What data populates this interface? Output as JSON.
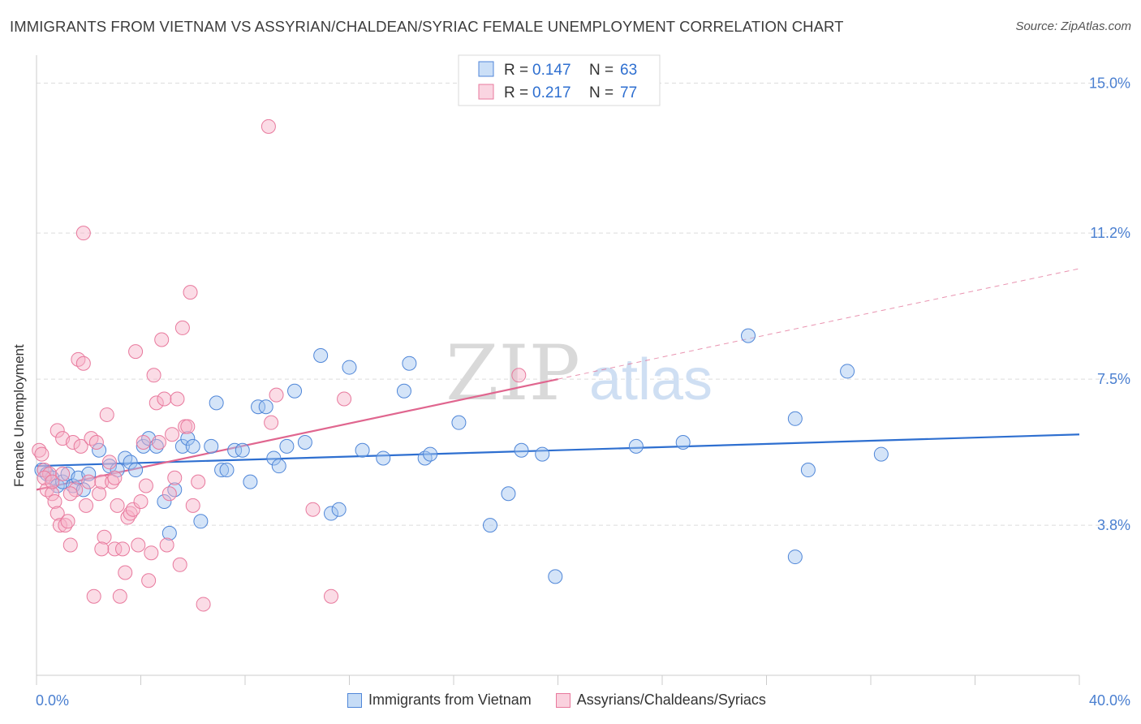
{
  "title": "IMMIGRANTS FROM VIETNAM VS ASSYRIAN/CHALDEAN/SYRIAC FEMALE UNEMPLOYMENT CORRELATION CHART",
  "source": "Source: ZipAtlas.com",
  "watermark": {
    "zip": "ZIP",
    "atlas": "atlas"
  },
  "colors": {
    "blue": "#4f86d8",
    "blue_fill": "rgba(160,196,240,0.45)",
    "blue_line": "#2e6fd0",
    "pink": "#e8799d",
    "pink_fill": "rgba(246,178,200,0.45)",
    "pink_line": "#e0668f",
    "grid": "#dcdcdc",
    "tick_label": "#4a7fd0"
  },
  "legend_top": {
    "rows": [
      {
        "r_label": "R = ",
        "r_value": "0.147",
        "n_label": "N = ",
        "n_value": "63"
      },
      {
        "r_label": "R = ",
        "r_value": "0.217",
        "n_label": "N = ",
        "n_value": "77"
      }
    ]
  },
  "chart_data": {
    "type": "scatter",
    "title": "IMMIGRANTS FROM VIETNAM VS ASSYRIAN/CHALDEAN/SYRIAC FEMALE UNEMPLOYMENT CORRELATION CHART",
    "xlabel": "",
    "ylabel": "Female Unemployment",
    "xlim": [
      0,
      40
    ],
    "ylim": [
      0,
      15.5
    ],
    "x_tick_labels": [
      "0.0%",
      "40.0%"
    ],
    "y_ticks": [
      3.8,
      7.5,
      11.2,
      15.0
    ],
    "y_tick_labels": [
      "3.8%",
      "7.5%",
      "11.2%",
      "15.0%"
    ],
    "grid": true,
    "legend_position": "top-center",
    "series": [
      {
        "name": "Immigrants from Vietnam",
        "color": "blue",
        "trend": {
          "x": [
            0,
            40
          ],
          "y": [
            5.3,
            6.1
          ],
          "dashed_from": null
        },
        "points": [
          [
            0.2,
            5.2
          ],
          [
            0.4,
            5.1
          ],
          [
            0.6,
            5.0
          ],
          [
            0.8,
            4.8
          ],
          [
            1.0,
            4.9
          ],
          [
            1.2,
            5.1
          ],
          [
            1.4,
            4.8
          ],
          [
            1.6,
            5.0
          ],
          [
            1.8,
            4.7
          ],
          [
            2.0,
            5.1
          ],
          [
            2.4,
            5.7
          ],
          [
            2.8,
            5.3
          ],
          [
            3.1,
            5.2
          ],
          [
            3.4,
            5.5
          ],
          [
            3.6,
            5.4
          ],
          [
            3.8,
            5.2
          ],
          [
            4.1,
            5.8
          ],
          [
            4.3,
            6.0
          ],
          [
            4.6,
            5.8
          ],
          [
            4.9,
            4.4
          ],
          [
            5.1,
            3.6
          ],
          [
            5.3,
            4.7
          ],
          [
            5.6,
            5.8
          ],
          [
            5.8,
            6.0
          ],
          [
            6.0,
            5.8
          ],
          [
            6.3,
            3.9
          ],
          [
            6.7,
            5.8
          ],
          [
            6.9,
            6.9
          ],
          [
            7.1,
            5.2
          ],
          [
            7.3,
            5.2
          ],
          [
            7.6,
            5.7
          ],
          [
            7.9,
            5.7
          ],
          [
            8.2,
            4.9
          ],
          [
            8.5,
            6.8
          ],
          [
            8.8,
            6.8
          ],
          [
            9.1,
            5.5
          ],
          [
            9.3,
            5.3
          ],
          [
            9.6,
            5.8
          ],
          [
            9.9,
            7.2
          ],
          [
            10.3,
            5.9
          ],
          [
            10.9,
            8.1
          ],
          [
            11.3,
            4.1
          ],
          [
            11.6,
            4.2
          ],
          [
            12.0,
            7.8
          ],
          [
            12.5,
            5.7
          ],
          [
            13.3,
            5.5
          ],
          [
            14.1,
            7.2
          ],
          [
            14.3,
            7.9
          ],
          [
            14.9,
            5.5
          ],
          [
            15.1,
            5.6
          ],
          [
            16.2,
            6.4
          ],
          [
            17.4,
            3.8
          ],
          [
            18.1,
            4.6
          ],
          [
            18.6,
            5.7
          ],
          [
            19.4,
            5.6
          ],
          [
            19.9,
            2.5
          ],
          [
            23.0,
            5.8
          ],
          [
            24.8,
            5.9
          ],
          [
            27.3,
            8.6
          ],
          [
            29.1,
            6.5
          ],
          [
            29.1,
            3.0
          ],
          [
            29.6,
            5.2
          ],
          [
            31.1,
            7.7
          ],
          [
            32.4,
            5.6
          ]
        ]
      },
      {
        "name": "Assyrians/Chaldeans/Syriacs",
        "color": "pink",
        "trend": {
          "x": [
            0,
            40
          ],
          "y": [
            4.7,
            10.3
          ],
          "dashed_from": 20
        },
        "points": [
          [
            0.1,
            5.7
          ],
          [
            0.2,
            5.6
          ],
          [
            0.3,
            5.2
          ],
          [
            0.4,
            4.7
          ],
          [
            0.5,
            5.1
          ],
          [
            0.6,
            4.6
          ],
          [
            0.7,
            4.4
          ],
          [
            0.8,
            6.2
          ],
          [
            0.8,
            4.1
          ],
          [
            0.9,
            3.8
          ],
          [
            1.0,
            6.0
          ],
          [
            1.1,
            3.8
          ],
          [
            1.2,
            3.9
          ],
          [
            1.3,
            3.3
          ],
          [
            1.4,
            5.9
          ],
          [
            1.5,
            4.7
          ],
          [
            1.6,
            8.0
          ],
          [
            1.7,
            5.8
          ],
          [
            1.8,
            7.9
          ],
          [
            1.9,
            4.3
          ],
          [
            2.0,
            4.9
          ],
          [
            2.1,
            6.0
          ],
          [
            2.2,
            2.0
          ],
          [
            2.3,
            5.9
          ],
          [
            2.4,
            4.6
          ],
          [
            2.5,
            4.9
          ],
          [
            2.6,
            3.5
          ],
          [
            2.7,
            6.6
          ],
          [
            2.8,
            5.4
          ],
          [
            2.9,
            4.9
          ],
          [
            3.0,
            3.2
          ],
          [
            3.1,
            4.3
          ],
          [
            3.2,
            2.0
          ],
          [
            3.3,
            3.2
          ],
          [
            3.4,
            2.6
          ],
          [
            3.5,
            4.0
          ],
          [
            3.6,
            4.1
          ],
          [
            3.7,
            4.2
          ],
          [
            3.8,
            8.2
          ],
          [
            3.9,
            3.3
          ],
          [
            4.0,
            4.4
          ],
          [
            4.1,
            5.9
          ],
          [
            4.2,
            4.8
          ],
          [
            4.3,
            2.4
          ],
          [
            4.4,
            3.1
          ],
          [
            4.5,
            7.6
          ],
          [
            4.6,
            6.9
          ],
          [
            4.7,
            5.9
          ],
          [
            4.8,
            8.5
          ],
          [
            4.9,
            7.0
          ],
          [
            5.0,
            3.3
          ],
          [
            5.1,
            4.6
          ],
          [
            5.2,
            6.1
          ],
          [
            5.3,
            5.0
          ],
          [
            5.4,
            7.0
          ],
          [
            5.5,
            2.8
          ],
          [
            5.6,
            8.8
          ],
          [
            5.7,
            6.3
          ],
          [
            5.8,
            6.3
          ],
          [
            5.9,
            9.7
          ],
          [
            6.0,
            4.3
          ],
          [
            6.2,
            4.9
          ],
          [
            6.4,
            1.8
          ],
          [
            1.8,
            11.2
          ],
          [
            8.9,
            13.9
          ],
          [
            9.0,
            6.4
          ],
          [
            9.2,
            7.1
          ],
          [
            10.6,
            4.2
          ],
          [
            11.3,
            2.0
          ],
          [
            11.8,
            7.0
          ],
          [
            18.5,
            7.6
          ],
          [
            0.3,
            5.0
          ],
          [
            0.6,
            4.9
          ],
          [
            1.0,
            5.1
          ],
          [
            1.3,
            4.6
          ],
          [
            2.5,
            3.2
          ],
          [
            3.0,
            5.0
          ]
        ]
      }
    ]
  },
  "legend_bottom": {
    "items": [
      {
        "label": "Immigrants from Vietnam"
      },
      {
        "label": "Assyrians/Chaldeans/Syriacs"
      }
    ]
  }
}
